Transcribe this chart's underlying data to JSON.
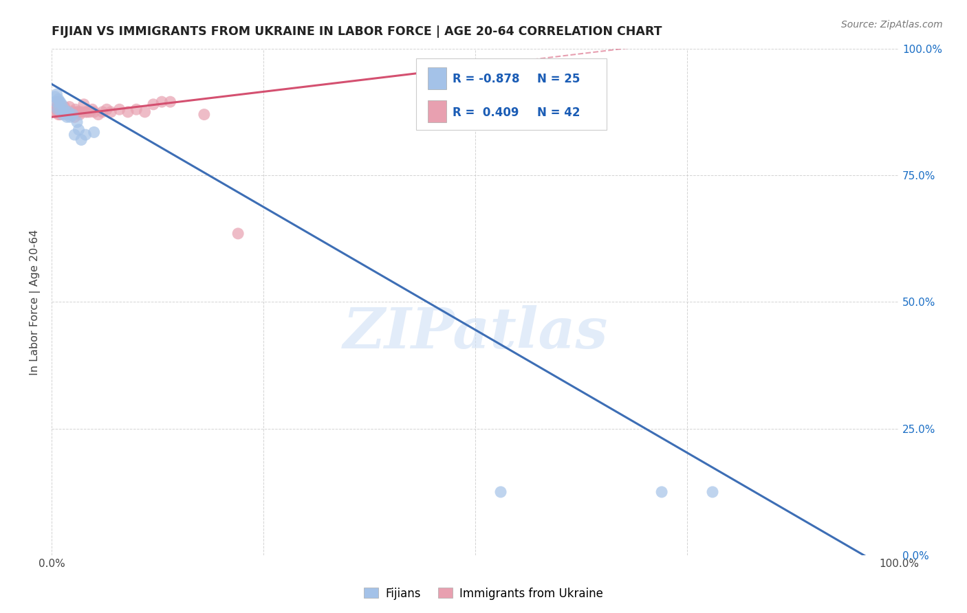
{
  "title": "FIJIAN VS IMMIGRANTS FROM UKRAINE IN LABOR FORCE | AGE 20-64 CORRELATION CHART",
  "source": "Source: ZipAtlas.com",
  "ylabel": "In Labor Force | Age 20-64",
  "xlim": [
    0.0,
    1.0
  ],
  "ylim": [
    0.0,
    1.0
  ],
  "x_ticks": [
    0.0,
    0.25,
    0.5,
    0.75,
    1.0
  ],
  "y_ticks": [
    0.0,
    0.25,
    0.5,
    0.75,
    1.0
  ],
  "x_tick_labels": [
    "0.0%",
    "",
    "",
    "",
    "100.0%"
  ],
  "y_tick_labels_right": [
    "0.0%",
    "25.0%",
    "50.0%",
    "75.0%",
    "100.0%"
  ],
  "background_color": "#ffffff",
  "grid_color": "#c8c8c8",
  "watermark_text": "ZIPatlas",
  "fijian_color": "#9fc5e8",
  "ukraine_color": "#e06c88",
  "fijian_scatter_color": "#a4c2e8",
  "ukraine_scatter_color": "#e8a0b0",
  "fijian_line_color": "#3d6eb5",
  "ukraine_line_color": "#d45070",
  "R_fijian": -0.878,
  "N_fijian": 25,
  "R_ukraine": 0.409,
  "N_ukraine": 42,
  "fijian_x": [
    0.004,
    0.005,
    0.006,
    0.007,
    0.008,
    0.009,
    0.01,
    0.01,
    0.012,
    0.013,
    0.015,
    0.016,
    0.018,
    0.02,
    0.022,
    0.025,
    0.027,
    0.03,
    0.032,
    0.035,
    0.04,
    0.05,
    0.53,
    0.72,
    0.78
  ],
  "fijian_y": [
    0.905,
    0.895,
    0.91,
    0.88,
    0.9,
    0.895,
    0.895,
    0.88,
    0.89,
    0.87,
    0.88,
    0.875,
    0.865,
    0.875,
    0.865,
    0.87,
    0.83,
    0.855,
    0.84,
    0.82,
    0.83,
    0.835,
    0.125,
    0.125,
    0.125
  ],
  "ukraine_x": [
    0.004,
    0.005,
    0.006,
    0.007,
    0.008,
    0.009,
    0.01,
    0.012,
    0.013,
    0.015,
    0.016,
    0.017,
    0.018,
    0.02,
    0.021,
    0.022,
    0.025,
    0.027,
    0.028,
    0.03,
    0.032,
    0.033,
    0.035,
    0.038,
    0.04,
    0.042,
    0.045,
    0.048,
    0.05,
    0.055,
    0.06,
    0.065,
    0.07,
    0.08,
    0.09,
    0.1,
    0.11,
    0.12,
    0.13,
    0.14,
    0.18,
    0.22
  ],
  "ukraine_y": [
    0.875,
    0.88,
    0.885,
    0.895,
    0.87,
    0.875,
    0.87,
    0.875,
    0.88,
    0.885,
    0.875,
    0.87,
    0.875,
    0.875,
    0.885,
    0.87,
    0.875,
    0.865,
    0.88,
    0.875,
    0.875,
    0.87,
    0.875,
    0.89,
    0.875,
    0.875,
    0.875,
    0.88,
    0.875,
    0.87,
    0.875,
    0.88,
    0.875,
    0.88,
    0.875,
    0.88,
    0.875,
    0.89,
    0.895,
    0.895,
    0.87,
    0.635
  ],
  "fijian_regline": [
    [
      0.0,
      0.93
    ],
    [
      1.0,
      -0.04
    ]
  ],
  "ukraine_regline_solid": [
    [
      0.0,
      0.865
    ],
    [
      0.55,
      0.975
    ]
  ],
  "ukraine_regline_dash": [
    [
      0.55,
      0.975
    ],
    [
      1.0,
      1.065
    ]
  ]
}
